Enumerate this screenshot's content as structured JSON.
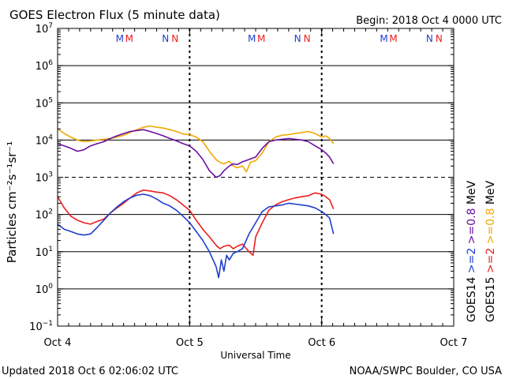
{
  "chart_data": {
    "type": "line",
    "title": "GOES Electron Flux (5 minute data)",
    "begin_text": "Begin: 2018 Oct 4 0000 UTC",
    "xlabel": "Universal Time",
    "ylabel": "Particles cm⁻²s⁻¹sr⁻¹",
    "y_scale": "log",
    "ylim": [
      0.1,
      10000000
    ],
    "y_ticks": [
      {
        "value": 10000000,
        "base": "10",
        "exp": "7"
      },
      {
        "value": 1000000,
        "base": "10",
        "exp": "6"
      },
      {
        "value": 100000,
        "base": "10",
        "exp": "5"
      },
      {
        "value": 10000,
        "base": "10",
        "exp": "4"
      },
      {
        "value": 1000,
        "base": "10",
        "exp": "3"
      },
      {
        "value": 100,
        "base": "10",
        "exp": "2"
      },
      {
        "value": 10,
        "base": "10",
        "exp": "1"
      },
      {
        "value": 1,
        "base": "10",
        "exp": "0"
      },
      {
        "value": 0.1,
        "base": "10",
        "exp": "−1"
      }
    ],
    "x_domain_days": [
      0,
      3
    ],
    "x_ticks": [
      {
        "day": 0,
        "label": "Oct 4"
      },
      {
        "day": 1,
        "label": "Oct 5"
      },
      {
        "day": 2,
        "label": "Oct 6"
      },
      {
        "day": 3,
        "label": "Oct 7"
      }
    ],
    "grid": true,
    "dashed_gridline_value": 1000,
    "midnight_dashed_markers": true,
    "noon_markers": [
      {
        "day": 0.5,
        "labels": [
          {
            "text": "M",
            "color": "#1f3fd0"
          },
          {
            "text": "M",
            "color": "#e8201e"
          }
        ]
      },
      {
        "day": 0.85,
        "labels": [
          {
            "text": "N",
            "color": "#1f3fd0"
          },
          {
            "text": "N",
            "color": "#e8201e"
          }
        ]
      },
      {
        "day": 1.5,
        "labels": [
          {
            "text": "M",
            "color": "#1f3fd0"
          },
          {
            "text": "M",
            "color": "#e8201e"
          }
        ]
      },
      {
        "day": 1.85,
        "labels": [
          {
            "text": "N",
            "color": "#1f3fd0"
          },
          {
            "text": "N",
            "color": "#e8201e"
          }
        ]
      },
      {
        "day": 2.5,
        "labels": [
          {
            "text": "M",
            "color": "#1f3fd0"
          },
          {
            "text": "M",
            "color": "#e8201e"
          }
        ]
      },
      {
        "day": 2.85,
        "labels": [
          {
            "text": "N",
            "color": "#1f3fd0"
          },
          {
            "text": "N",
            "color": "#e8201e"
          }
        ]
      }
    ],
    "legend_columns": [
      {
        "position": "right-inner",
        "items": [
          {
            "text": "GOES14",
            "color": "#000000"
          },
          {
            "text": ">=2",
            "color": "#1f3fd0"
          },
          {
            "text": ">=0.8",
            "color": "#6a0fa0"
          },
          {
            "text": "MeV",
            "color": "#000000"
          }
        ]
      },
      {
        "position": "right-outer",
        "items": [
          {
            "text": "GOES15",
            "color": "#000000"
          },
          {
            "text": ">=2",
            "color": "#e8201e"
          },
          {
            "text": ">=0.8",
            "color": "#f0a800"
          },
          {
            "text": "MeV",
            "color": "#000000"
          }
        ]
      }
    ],
    "series": [
      {
        "name": "GOES15 >=0.8 MeV",
        "color": "#f0a800",
        "x": [
          0,
          0.05,
          0.1,
          0.15,
          0.2,
          0.25,
          0.3,
          0.35,
          0.4,
          0.45,
          0.5,
          0.55,
          0.6,
          0.65,
          0.7,
          0.75,
          0.8,
          0.85,
          0.9,
          0.95,
          1.0,
          1.05,
          1.1,
          1.15,
          1.2,
          1.23,
          1.26,
          1.3,
          1.33,
          1.36,
          1.4,
          1.43,
          1.46,
          1.5,
          1.55,
          1.6,
          1.65,
          1.7,
          1.75,
          1.8,
          1.85,
          1.9,
          1.95,
          2.0,
          2.03,
          2.06,
          2.09
        ],
        "y": [
          20000,
          15000,
          12000,
          10000,
          9000,
          9500,
          10000,
          10500,
          11000,
          12000,
          13500,
          16000,
          19000,
          22000,
          24000,
          22000,
          21000,
          19000,
          17000,
          14500,
          14000,
          12000,
          9000,
          5000,
          3000,
          2500,
          2300,
          2700,
          2000,
          1800,
          2000,
          1400,
          2500,
          2800,
          4500,
          9000,
          12000,
          13500,
          14000,
          15000,
          16000,
          17000,
          15000,
          12000,
          13000,
          11000,
          8000
        ]
      },
      {
        "name": "GOES14 >=0.8 MeV",
        "color": "#6a0fa0",
        "x": [
          0,
          0.05,
          0.1,
          0.15,
          0.2,
          0.25,
          0.3,
          0.35,
          0.4,
          0.45,
          0.5,
          0.55,
          0.6,
          0.65,
          0.7,
          0.75,
          0.8,
          0.85,
          0.9,
          0.95,
          1.0,
          1.05,
          1.1,
          1.15,
          1.2,
          1.23,
          1.26,
          1.3,
          1.33,
          1.36,
          1.4,
          1.45,
          1.5,
          1.55,
          1.6,
          1.65,
          1.7,
          1.75,
          1.8,
          1.85,
          1.9,
          1.95,
          2.0,
          2.03,
          2.06,
          2.09
        ],
        "y": [
          8000,
          7000,
          6000,
          5000,
          5500,
          7000,
          8000,
          9000,
          11000,
          13000,
          15000,
          17000,
          18000,
          19000,
          17000,
          15000,
          13000,
          11000,
          9500,
          8000,
          7000,
          5000,
          3000,
          1500,
          1000,
          1100,
          1500,
          2000,
          2300,
          2200,
          2600,
          3000,
          3500,
          6000,
          9000,
          10000,
          10500,
          11000,
          10500,
          10000,
          9000,
          7000,
          5500,
          4500,
          3500,
          2300
        ]
      },
      {
        "name": "GOES15 >=2 MeV",
        "color": "#e8201e",
        "x": [
          0,
          0.05,
          0.1,
          0.15,
          0.2,
          0.25,
          0.3,
          0.35,
          0.4,
          0.45,
          0.5,
          0.55,
          0.6,
          0.65,
          0.7,
          0.75,
          0.8,
          0.85,
          0.9,
          0.95,
          1.0,
          1.05,
          1.1,
          1.15,
          1.2,
          1.23,
          1.26,
          1.3,
          1.33,
          1.36,
          1.4,
          1.45,
          1.48,
          1.5,
          1.55,
          1.6,
          1.65,
          1.7,
          1.75,
          1.8,
          1.85,
          1.9,
          1.95,
          2.0,
          2.03,
          2.06,
          2.09
        ],
        "y": [
          300,
          150,
          90,
          70,
          60,
          55,
          65,
          75,
          110,
          150,
          200,
          280,
          380,
          450,
          430,
          400,
          380,
          320,
          250,
          180,
          130,
          70,
          40,
          25,
          15,
          12,
          14,
          15,
          12,
          14,
          16,
          10,
          8,
          25,
          60,
          130,
          180,
          220,
          250,
          280,
          300,
          320,
          380,
          350,
          300,
          250,
          140
        ]
      },
      {
        "name": "GOES14 >=2 MeV",
        "color": "#1f3fd0",
        "x": [
          0,
          0.05,
          0.1,
          0.15,
          0.2,
          0.25,
          0.3,
          0.35,
          0.4,
          0.45,
          0.5,
          0.55,
          0.6,
          0.65,
          0.7,
          0.75,
          0.8,
          0.85,
          0.9,
          0.95,
          1.0,
          1.05,
          1.1,
          1.15,
          1.2,
          1.22,
          1.24,
          1.26,
          1.28,
          1.3,
          1.33,
          1.36,
          1.4,
          1.45,
          1.5,
          1.55,
          1.6,
          1.65,
          1.7,
          1.75,
          1.8,
          1.85,
          1.9,
          1.95,
          2.0,
          2.03,
          2.06,
          2.09
        ],
        "y": [
          55,
          40,
          35,
          30,
          28,
          30,
          45,
          70,
          110,
          160,
          220,
          280,
          330,
          350,
          320,
          260,
          200,
          170,
          130,
          90,
          60,
          35,
          20,
          10,
          4,
          2,
          6,
          3,
          8,
          6,
          9,
          10,
          12,
          30,
          60,
          120,
          160,
          170,
          180,
          200,
          190,
          180,
          170,
          150,
          120,
          100,
          80,
          30
        ]
      }
    ],
    "footer_left": "Updated 2018 Oct  6 02:06:02 UTC",
    "footer_right": "NOAA/SWPC Boulder, CO USA"
  }
}
